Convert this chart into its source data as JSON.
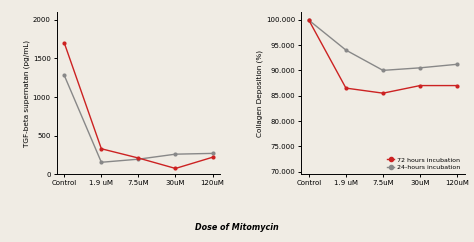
{
  "left": {
    "x_labels": [
      "Control",
      "1.9 uM",
      "7.5uM",
      "30uM",
      "120uM"
    ],
    "red_values": [
      1700,
      330,
      210,
      75,
      220
    ],
    "gray_values": [
      1280,
      155,
      195,
      260,
      270
    ],
    "ylabel": "TGF-beta supernatan (pg/mL)",
    "ylim": [
      0,
      2100
    ],
    "yticks": [
      0,
      500,
      1000,
      1500,
      2000
    ]
  },
  "right": {
    "x_labels": [
      "Control",
      "1.9 uM",
      "7.5uM",
      "30uM",
      "120uM"
    ],
    "red_values": [
      99.9,
      86.5,
      85.5,
      87.0,
      87.0
    ],
    "gray_values": [
      99.9,
      94.0,
      90.0,
      90.5,
      91.2
    ],
    "ylabel": "Collagen Deposition (%)",
    "ylim": [
      69.5,
      101.5
    ],
    "yticks": [
      70.0,
      75.0,
      80.0,
      85.0,
      90.0,
      95.0,
      100.0
    ],
    "ytick_labels": [
      "70.000",
      "75.000",
      "80.000",
      "85.000",
      "90.000",
      "95.000",
      "100.000"
    ],
    "legend_labels": [
      "72 hours incubation",
      "24-hours incubation"
    ]
  },
  "shared_xlabel": "Dose of Mitomycin",
  "red_color": "#cc2222",
  "gray_color": "#888888",
  "bg_color": "#f0ece4"
}
